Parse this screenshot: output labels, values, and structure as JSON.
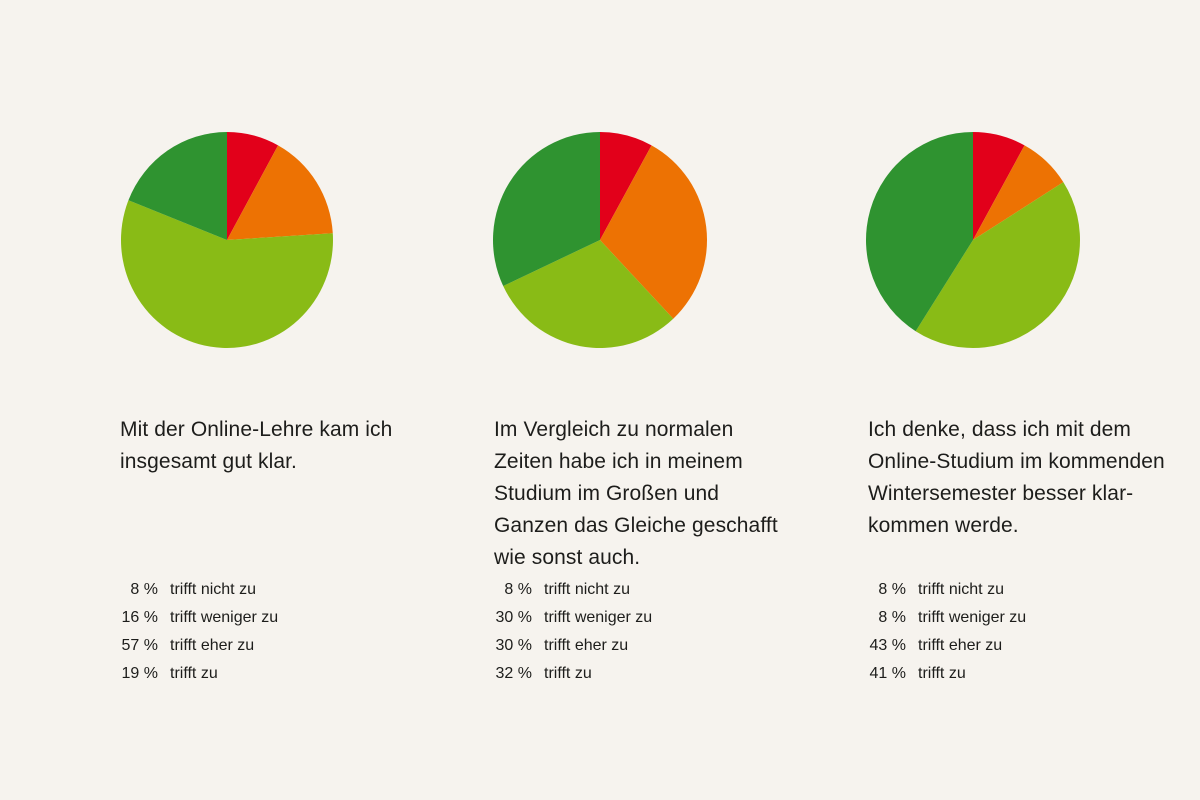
{
  "colors": {
    "background": "#f6f3ee",
    "trifft_nicht_zu": "#e2001a",
    "trifft_weniger_zu": "#ed7203",
    "trifft_eher_zu": "#89bb16",
    "trifft_zu": "#2f9330"
  },
  "panels": [
    {
      "question": "Mit der Online-Lehre kam ich insgesamt gut klar.",
      "legend": [
        {
          "value": "8 %",
          "label": "trifft nicht zu"
        },
        {
          "value": "16 %",
          "label": "trifft weniger zu"
        },
        {
          "value": "57 %",
          "label": "trifft eher zu"
        },
        {
          "value": "19 %",
          "label": "trifft zu"
        }
      ]
    },
    {
      "question": "Im Vergleich zu normalen Zeiten habe ich in meinem Studium im Großen und Ganzen das Gleiche geschafft wie sonst auch.",
      "legend": [
        {
          "value": "8 %",
          "label": "trifft nicht zu"
        },
        {
          "value": "30 %",
          "label": "trifft weniger zu"
        },
        {
          "value": "30 %",
          "label": "trifft eher zu"
        },
        {
          "value": "32 %",
          "label": "trifft zu"
        }
      ]
    },
    {
      "question": "Ich denke, dass ich mit dem Online-Studium im kommenden Wintersemester besser klar-kommen werde.",
      "legend": [
        {
          "value": "8 %",
          "label": "trifft nicht zu"
        },
        {
          "value": "8 %",
          "label": "trifft weniger zu"
        },
        {
          "value": "43 %",
          "label": "trifft eher zu"
        },
        {
          "value": "41 %",
          "label": "trifft zu"
        }
      ]
    }
  ],
  "chart_data": [
    {
      "type": "pie",
      "title": "Mit der Online-Lehre kam ich insgesamt gut klar.",
      "categories": [
        "trifft nicht zu",
        "trifft weniger zu",
        "trifft eher zu",
        "trifft zu"
      ],
      "values": [
        8,
        16,
        57,
        19
      ],
      "unit": "%",
      "colors": [
        "#e2001a",
        "#ed7203",
        "#89bb16",
        "#2f9330"
      ],
      "start": "12 o'clock",
      "direction": "clockwise"
    },
    {
      "type": "pie",
      "title": "Im Vergleich zu normalen Zeiten habe ich in meinem Studium im Großen und Ganzen das Gleiche geschafft wie sonst auch.",
      "categories": [
        "trifft nicht zu",
        "trifft weniger zu",
        "trifft eher zu",
        "trifft zu"
      ],
      "values": [
        8,
        30,
        30,
        32
      ],
      "unit": "%",
      "colors": [
        "#e2001a",
        "#ed7203",
        "#89bb16",
        "#2f9330"
      ],
      "start": "12 o'clock",
      "direction": "clockwise"
    },
    {
      "type": "pie",
      "title": "Ich denke, dass ich mit dem Online-Studium im kommenden Wintersemester besser klar-kommen werde.",
      "categories": [
        "trifft nicht zu",
        "trifft weniger zu",
        "trifft eher zu",
        "trifft zu"
      ],
      "values": [
        8,
        8,
        43,
        41
      ],
      "unit": "%",
      "colors": [
        "#e2001a",
        "#ed7203",
        "#89bb16",
        "#2f9330"
      ],
      "start": "12 o'clock",
      "direction": "clockwise"
    }
  ]
}
